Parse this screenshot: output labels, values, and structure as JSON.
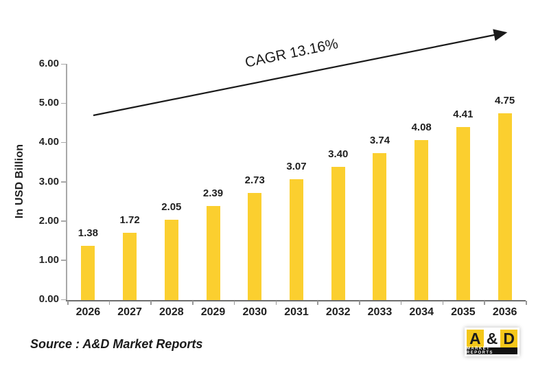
{
  "chart_data": {
    "type": "bar",
    "title": "",
    "categories": [
      "2026",
      "2027",
      "2028",
      "2029",
      "2030",
      "2031",
      "2032",
      "2033",
      "2034",
      "2035",
      "2036"
    ],
    "values": [
      1.38,
      1.72,
      2.05,
      2.39,
      2.73,
      3.07,
      3.4,
      3.74,
      4.08,
      4.41,
      4.75
    ],
    "value_labels": [
      "1.38",
      "1.72",
      "2.05",
      "2.39",
      "2.73",
      "3.07",
      "3.40",
      "3.74",
      "4.08",
      "4.41",
      "4.75"
    ],
    "xlabel": "",
    "ylabel": "In USD Billion",
    "ylim": [
      0,
      6
    ],
    "ytick_step": 1,
    "yticks": [
      "0.00",
      "1.00",
      "2.00",
      "3.00",
      "4.00",
      "5.00",
      "6.00"
    ],
    "grid": false,
    "legend": null,
    "bar_color": "#FBCF2F",
    "annotation": {
      "text": "CAGR 13.16%"
    }
  },
  "footer": {
    "source": "Source : A&D Market Reports"
  },
  "logo": {
    "letter_a": "A",
    "ampersand": "&",
    "letter_d": "D",
    "subtitle": "MARKET REPORTS",
    "yellow": "#F4C71A"
  },
  "colors": {
    "bar": "#FBCF2F",
    "axis": "#a8a8a8",
    "text": "#1f1f1f",
    "arrow": "#1a1a1a"
  }
}
